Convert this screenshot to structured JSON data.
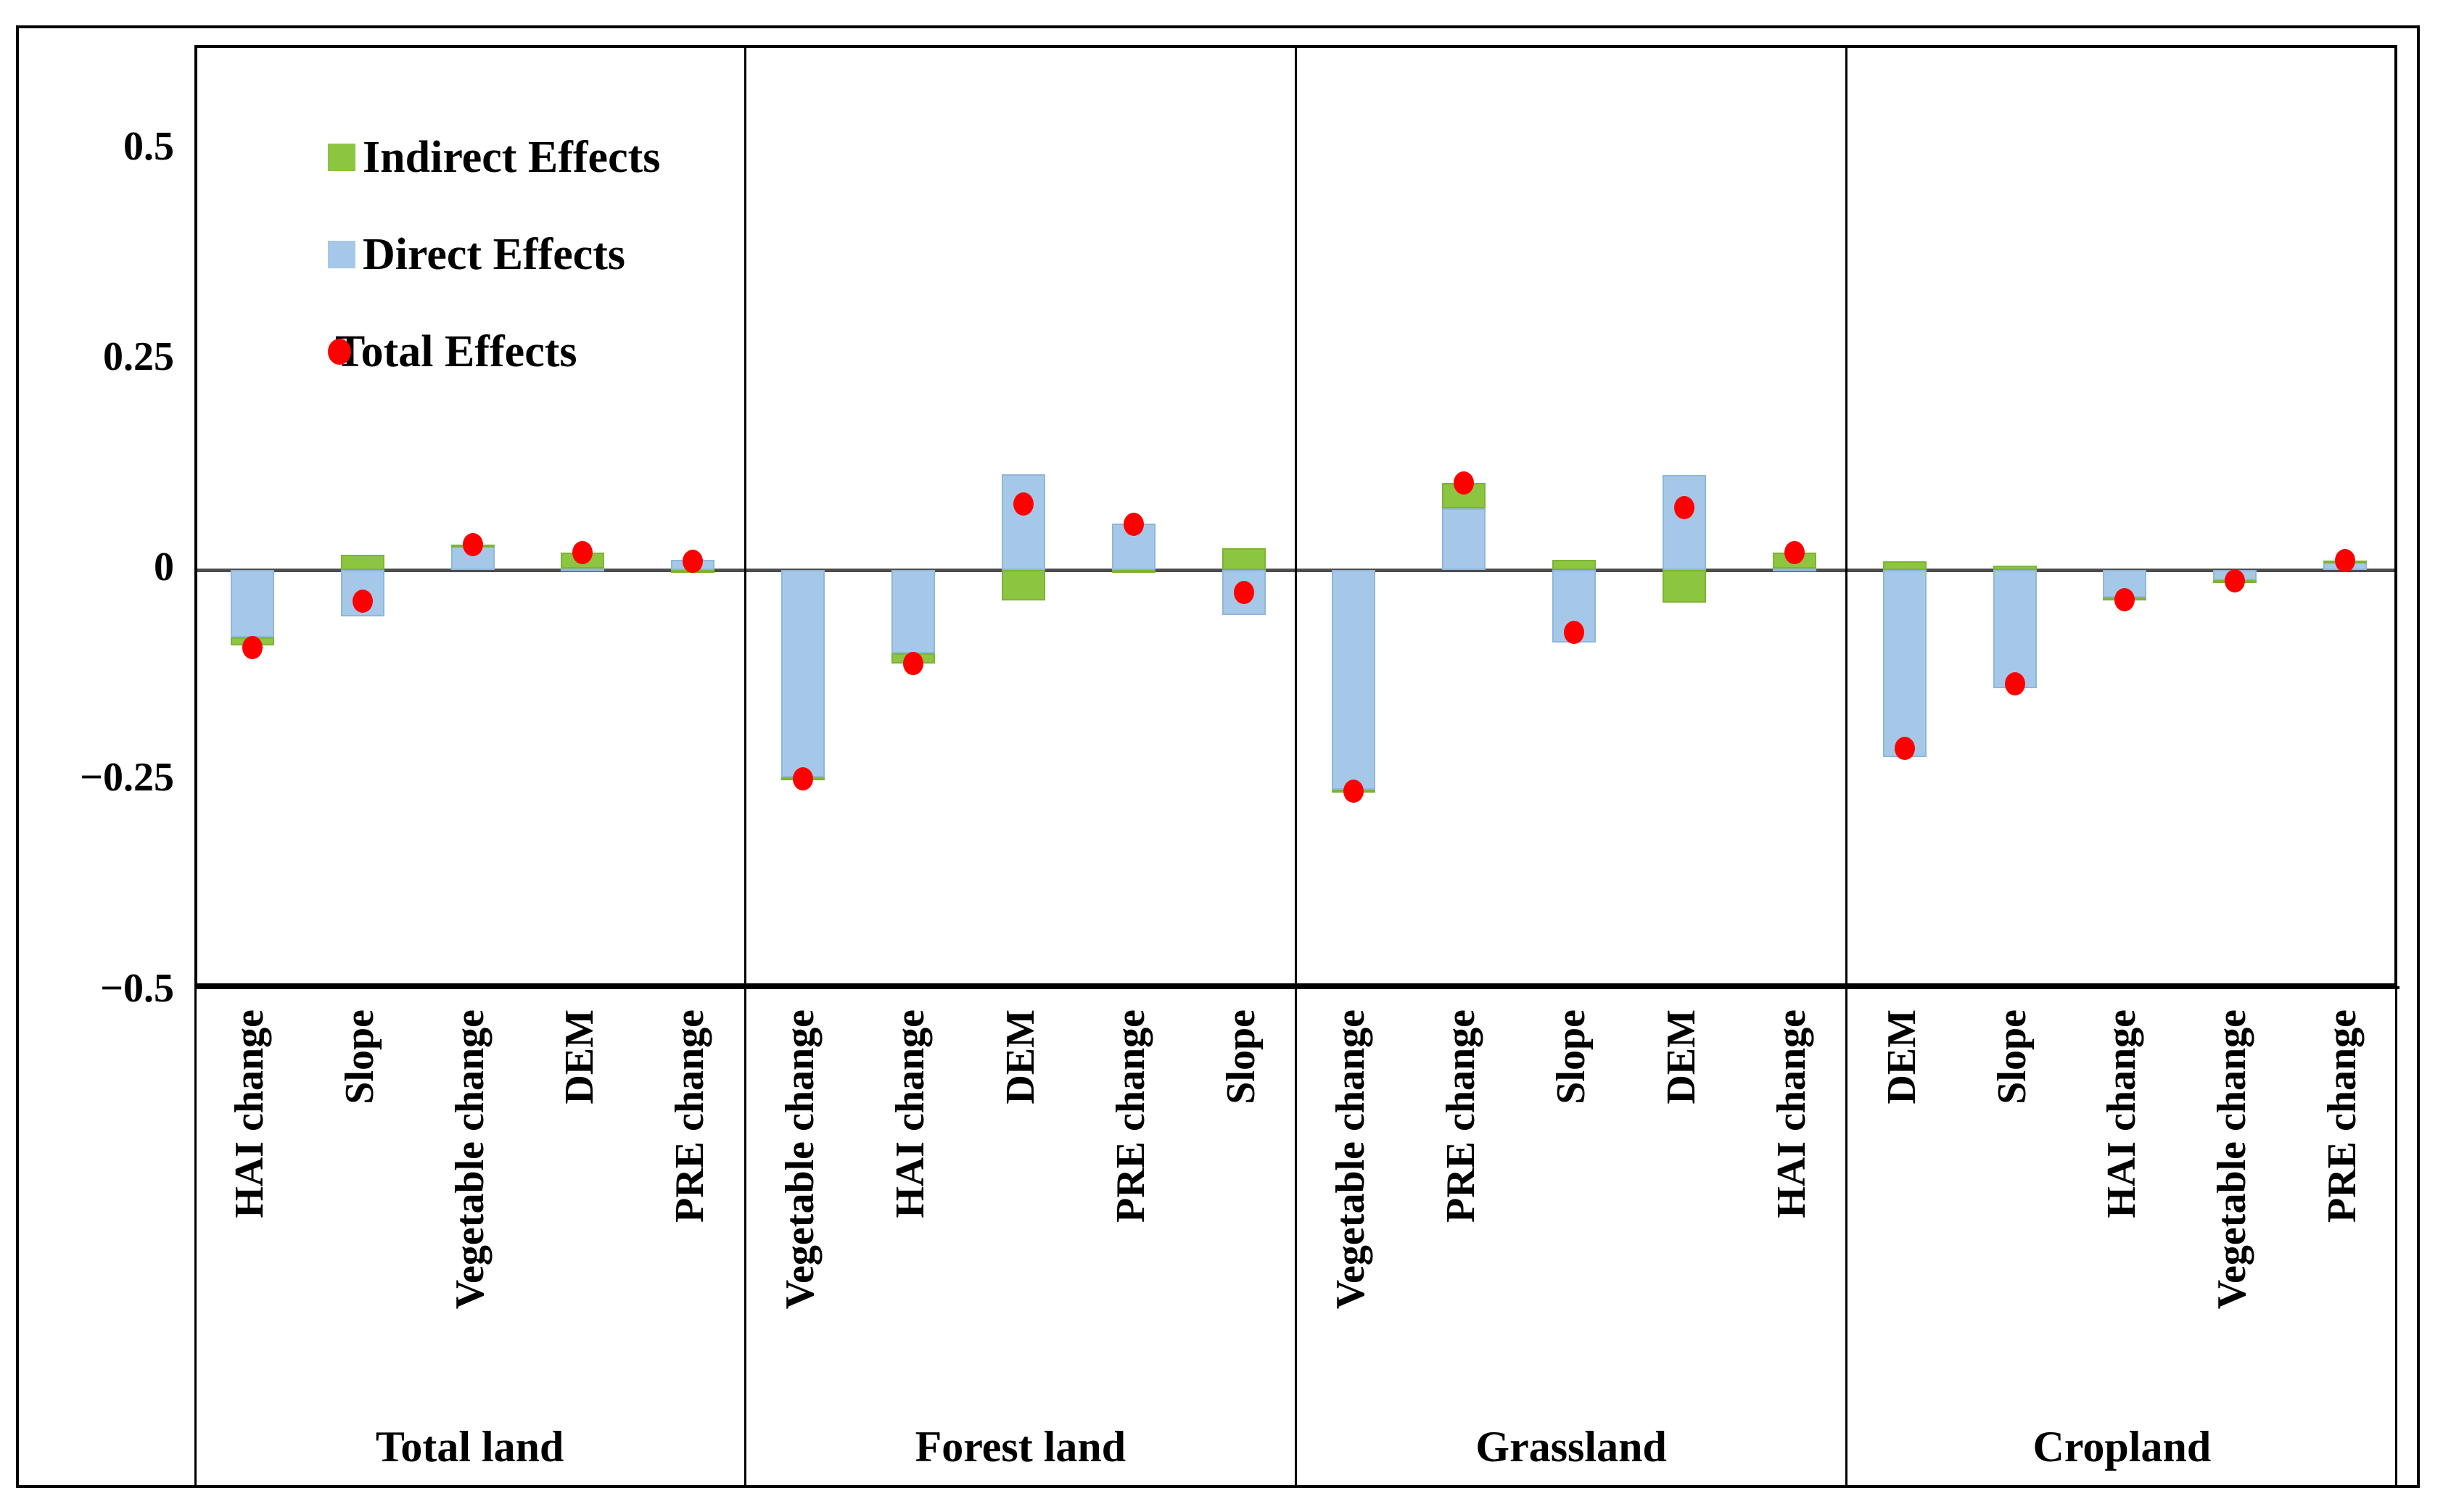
{
  "legend": {
    "items": [
      {
        "label": "Indirect Effects",
        "marker": "square",
        "color": "#8CC540"
      },
      {
        "label": "Direct Effects",
        "marker": "square",
        "color": "#A6C8E8"
      },
      {
        "label": "Total Effects",
        "marker": "dot",
        "color": "#FF0000"
      }
    ]
  },
  "colors": {
    "indirect": "#8CC540",
    "direct": "#A6C8E8",
    "total": "#FF0000",
    "axis": "#000000",
    "zero_line": "#4d4d4d",
    "background": "#ffffff"
  },
  "chart_data": {
    "type": "bar",
    "subtype": "stacked-columns-with-total-points",
    "title": "",
    "xlabel": "",
    "ylabel": "",
    "ylim": [
      -0.5,
      0.62
    ],
    "yticks": [
      0.5,
      0.25,
      0,
      -0.25,
      -0.5
    ],
    "ytick_labels": [
      "0.5",
      "0.25",
      "0",
      "−0.25",
      "−0.5"
    ],
    "grid": false,
    "legend_position": "inside-top-left",
    "series_names": [
      "Indirect Effects",
      "Direct Effects",
      "Total Effects"
    ],
    "groups": [
      {
        "name": "Total land",
        "bars": [
          {
            "label": "HAI change",
            "indirect": -0.01,
            "direct": -0.08,
            "total": -0.092
          },
          {
            "label": "Slope",
            "indirect": 0.018,
            "direct": -0.055,
            "total": -0.037
          },
          {
            "label": "Vegetable change",
            "indirect": 0.002,
            "direct": 0.028,
            "total": 0.03
          },
          {
            "label": "DEM",
            "indirect": 0.019,
            "direct": 0.002,
            "total": 0.021
          },
          {
            "label": "PRE change",
            "indirect": -0.002,
            "direct": 0.012,
            "total": 0.01
          }
        ]
      },
      {
        "name": "Forest land",
        "bars": [
          {
            "label": "Vegetable change",
            "indirect": -0.002,
            "direct": -0.246,
            "total": -0.248
          },
          {
            "label": "HAI change",
            "indirect": -0.012,
            "direct": -0.099,
            "total": -0.111
          },
          {
            "label": "DEM",
            "indirect": -0.036,
            "direct": 0.114,
            "total": 0.078
          },
          {
            "label": "PRE change",
            "indirect": -0.001,
            "direct": 0.055,
            "total": 0.054
          },
          {
            "label": "Slope",
            "indirect": 0.026,
            "direct": -0.053,
            "total": -0.027
          }
        ]
      },
      {
        "name": "Grassland",
        "bars": [
          {
            "label": "Vegetable change",
            "indirect": -0.002,
            "direct": -0.261,
            "total": -0.263
          },
          {
            "label": "PRE change",
            "indirect": 0.03,
            "direct": 0.073,
            "total": 0.103
          },
          {
            "label": "Slope",
            "indirect": 0.012,
            "direct": -0.086,
            "total": -0.074
          },
          {
            "label": "DEM",
            "indirect": -0.039,
            "direct": 0.113,
            "total": 0.074
          },
          {
            "label": "HAI change",
            "indirect": 0.019,
            "direct": 0.002,
            "total": 0.021
          }
        ]
      },
      {
        "name": "Cropland",
        "bars": [
          {
            "label": "DEM",
            "indirect": 0.01,
            "direct": -0.222,
            "total": -0.212
          },
          {
            "label": "Slope",
            "indirect": 0.005,
            "direct": -0.14,
            "total": -0.135
          },
          {
            "label": "HAI change",
            "indirect": -0.002,
            "direct": -0.033,
            "total": -0.035
          },
          {
            "label": "Vegetable change",
            "indirect": -0.001,
            "direct": -0.012,
            "total": -0.013
          },
          {
            "label": "PRE change",
            "indirect": 0.001,
            "direct": 0.01,
            "total": 0.011
          }
        ]
      }
    ]
  }
}
